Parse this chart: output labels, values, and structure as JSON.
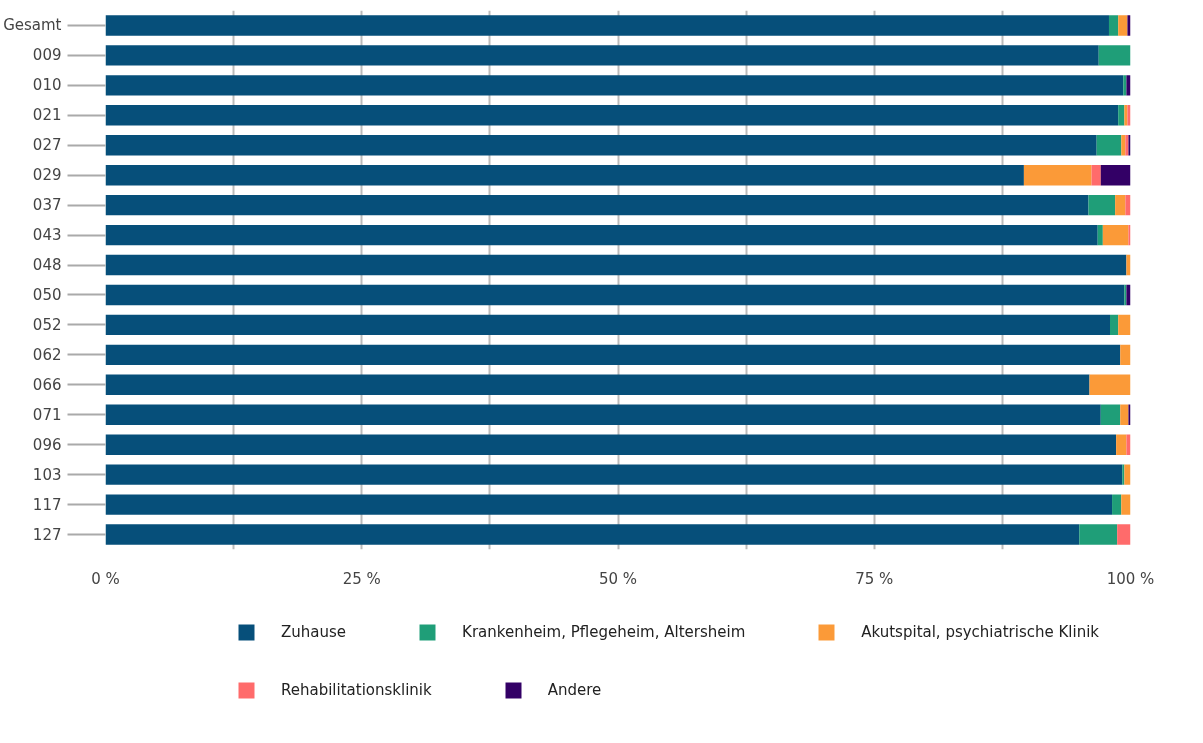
{
  "chart_data": {
    "type": "bar",
    "orientation": "horizontal",
    "stacked": true,
    "categories": [
      "Gesamt",
      "009",
      "010",
      "021",
      "027",
      "029",
      "037",
      "043",
      "048",
      "050",
      "052",
      "062",
      "066",
      "071",
      "096",
      "103",
      "117",
      "127"
    ],
    "series": [
      {
        "name": "Zuhause",
        "color": "#064f7a",
        "values": [
          97.9,
          96.9,
          99.3,
          98.8,
          96.7,
          89.6,
          95.9,
          96.8,
          99.6,
          99.4,
          98.0,
          99.0,
          96.0,
          97.1,
          98.6,
          99.2,
          98.2,
          95.0
        ]
      },
      {
        "name": "Krankenheim, Pflegeheim, Altersheim",
        "color": "#1f9e78",
        "values": [
          0.9,
          3.1,
          0.3,
          0.6,
          2.4,
          null,
          2.6,
          0.5,
          null,
          0.2,
          0.8,
          null,
          null,
          1.9,
          null,
          0.2,
          0.9,
          3.7
        ]
      },
      {
        "name": "Akutspital, psychiatrische Klinik",
        "color": "#fb9a38",
        "values": [
          0.9,
          null,
          null,
          0.3,
          0.4,
          6.6,
          1.0,
          2.5,
          0.4,
          null,
          1.2,
          1.0,
          4.0,
          0.8,
          1.0,
          0.6,
          0.9,
          null
        ]
      },
      {
        "name": "Rehabilitationsklinik",
        "color": "#ff6b6b",
        "values": [
          null,
          null,
          null,
          0.3,
          0.3,
          0.9,
          0.5,
          0.2,
          null,
          null,
          null,
          null,
          null,
          null,
          0.4,
          null,
          null,
          1.3
        ]
      },
      {
        "name": "Andere",
        "color": "#330066",
        "values": [
          0.3,
          null,
          0.4,
          null,
          0.2,
          2.9,
          null,
          null,
          null,
          0.4,
          null,
          null,
          null,
          0.2,
          null,
          null,
          null,
          null
        ]
      }
    ],
    "xlim": [
      0,
      100
    ],
    "xticks": [
      {
        "value": 0,
        "label": "0 %"
      },
      {
        "value": 12.5,
        "label": null
      },
      {
        "value": 25,
        "label": "25 %"
      },
      {
        "value": 37.5,
        "label": null
      },
      {
        "value": 50,
        "label": "50 %"
      },
      {
        "value": 62.5,
        "label": null
      },
      {
        "value": 75,
        "label": "75 %"
      },
      {
        "value": 87.5,
        "label": null
      },
      {
        "value": 100,
        "label": "100 %"
      }
    ],
    "grid": "x",
    "legend": "bottom"
  }
}
